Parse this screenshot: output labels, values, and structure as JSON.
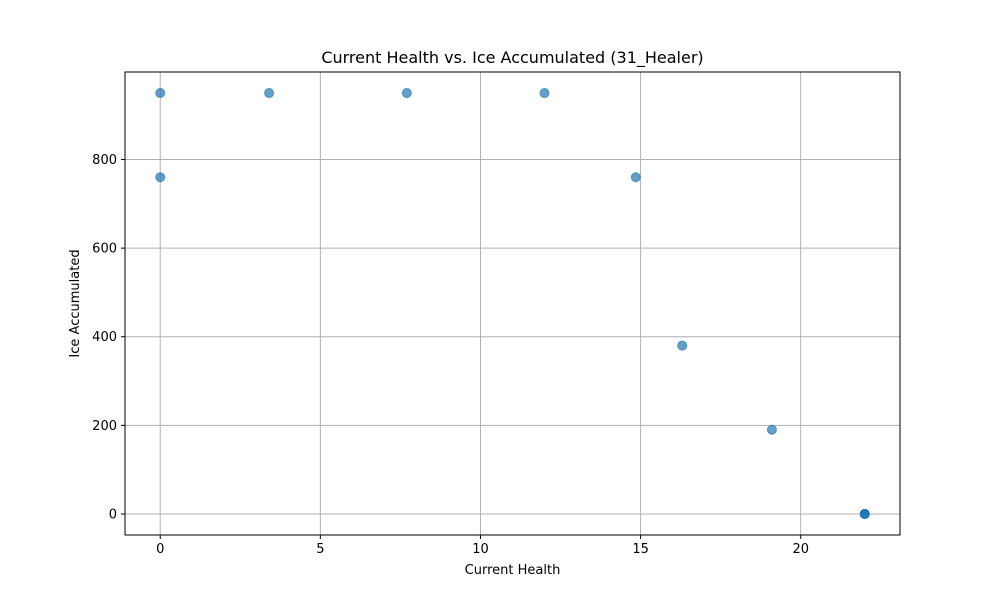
{
  "chart_data": {
    "type": "scatter",
    "title": "Current Health vs. Ice Accumulated (31_Healer)",
    "xlabel": "Current Health",
    "ylabel": "Ice Accumulated",
    "xlim": [
      -1.1,
      23.1
    ],
    "ylim": [
      -47.5,
      997.5
    ],
    "xticks": [
      0,
      5,
      10,
      15,
      20
    ],
    "yticks": [
      0,
      200,
      400,
      600,
      800
    ],
    "grid": true,
    "legend": false,
    "points": [
      {
        "x": 0,
        "y": 950
      },
      {
        "x": 0,
        "y": 760
      },
      {
        "x": 3.4,
        "y": 950
      },
      {
        "x": 7.7,
        "y": 950
      },
      {
        "x": 12.0,
        "y": 950
      },
      {
        "x": 14.85,
        "y": 760
      },
      {
        "x": 16.3,
        "y": 380
      },
      {
        "x": 19.1,
        "y": 190
      },
      {
        "x": 22,
        "y": 0
      },
      {
        "x": 22,
        "y": 0
      },
      {
        "x": 22,
        "y": 0
      },
      {
        "x": 22,
        "y": 0
      }
    ],
    "colors": {
      "marker": "#1f77b4",
      "grid": "#b0b0b0",
      "axes": "#000000"
    }
  }
}
